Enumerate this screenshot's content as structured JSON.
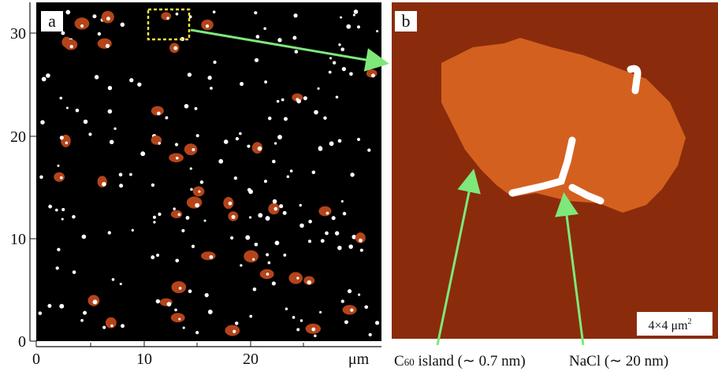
{
  "panel_a": {
    "label": "a",
    "yticks": [
      "0",
      "10",
      "20",
      "30"
    ],
    "xticks": [
      "0",
      "10",
      "20"
    ],
    "x_unit": "μm"
  },
  "panel_b": {
    "label": "b",
    "scale": "4×4 μm",
    "scale_sup": "2"
  },
  "annotations": [
    {
      "prefix": "C",
      "sub": "60",
      "text": " island (∼ 0.7 nm)"
    },
    {
      "text": "NaCl (∼ 20 nm)"
    }
  ]
}
